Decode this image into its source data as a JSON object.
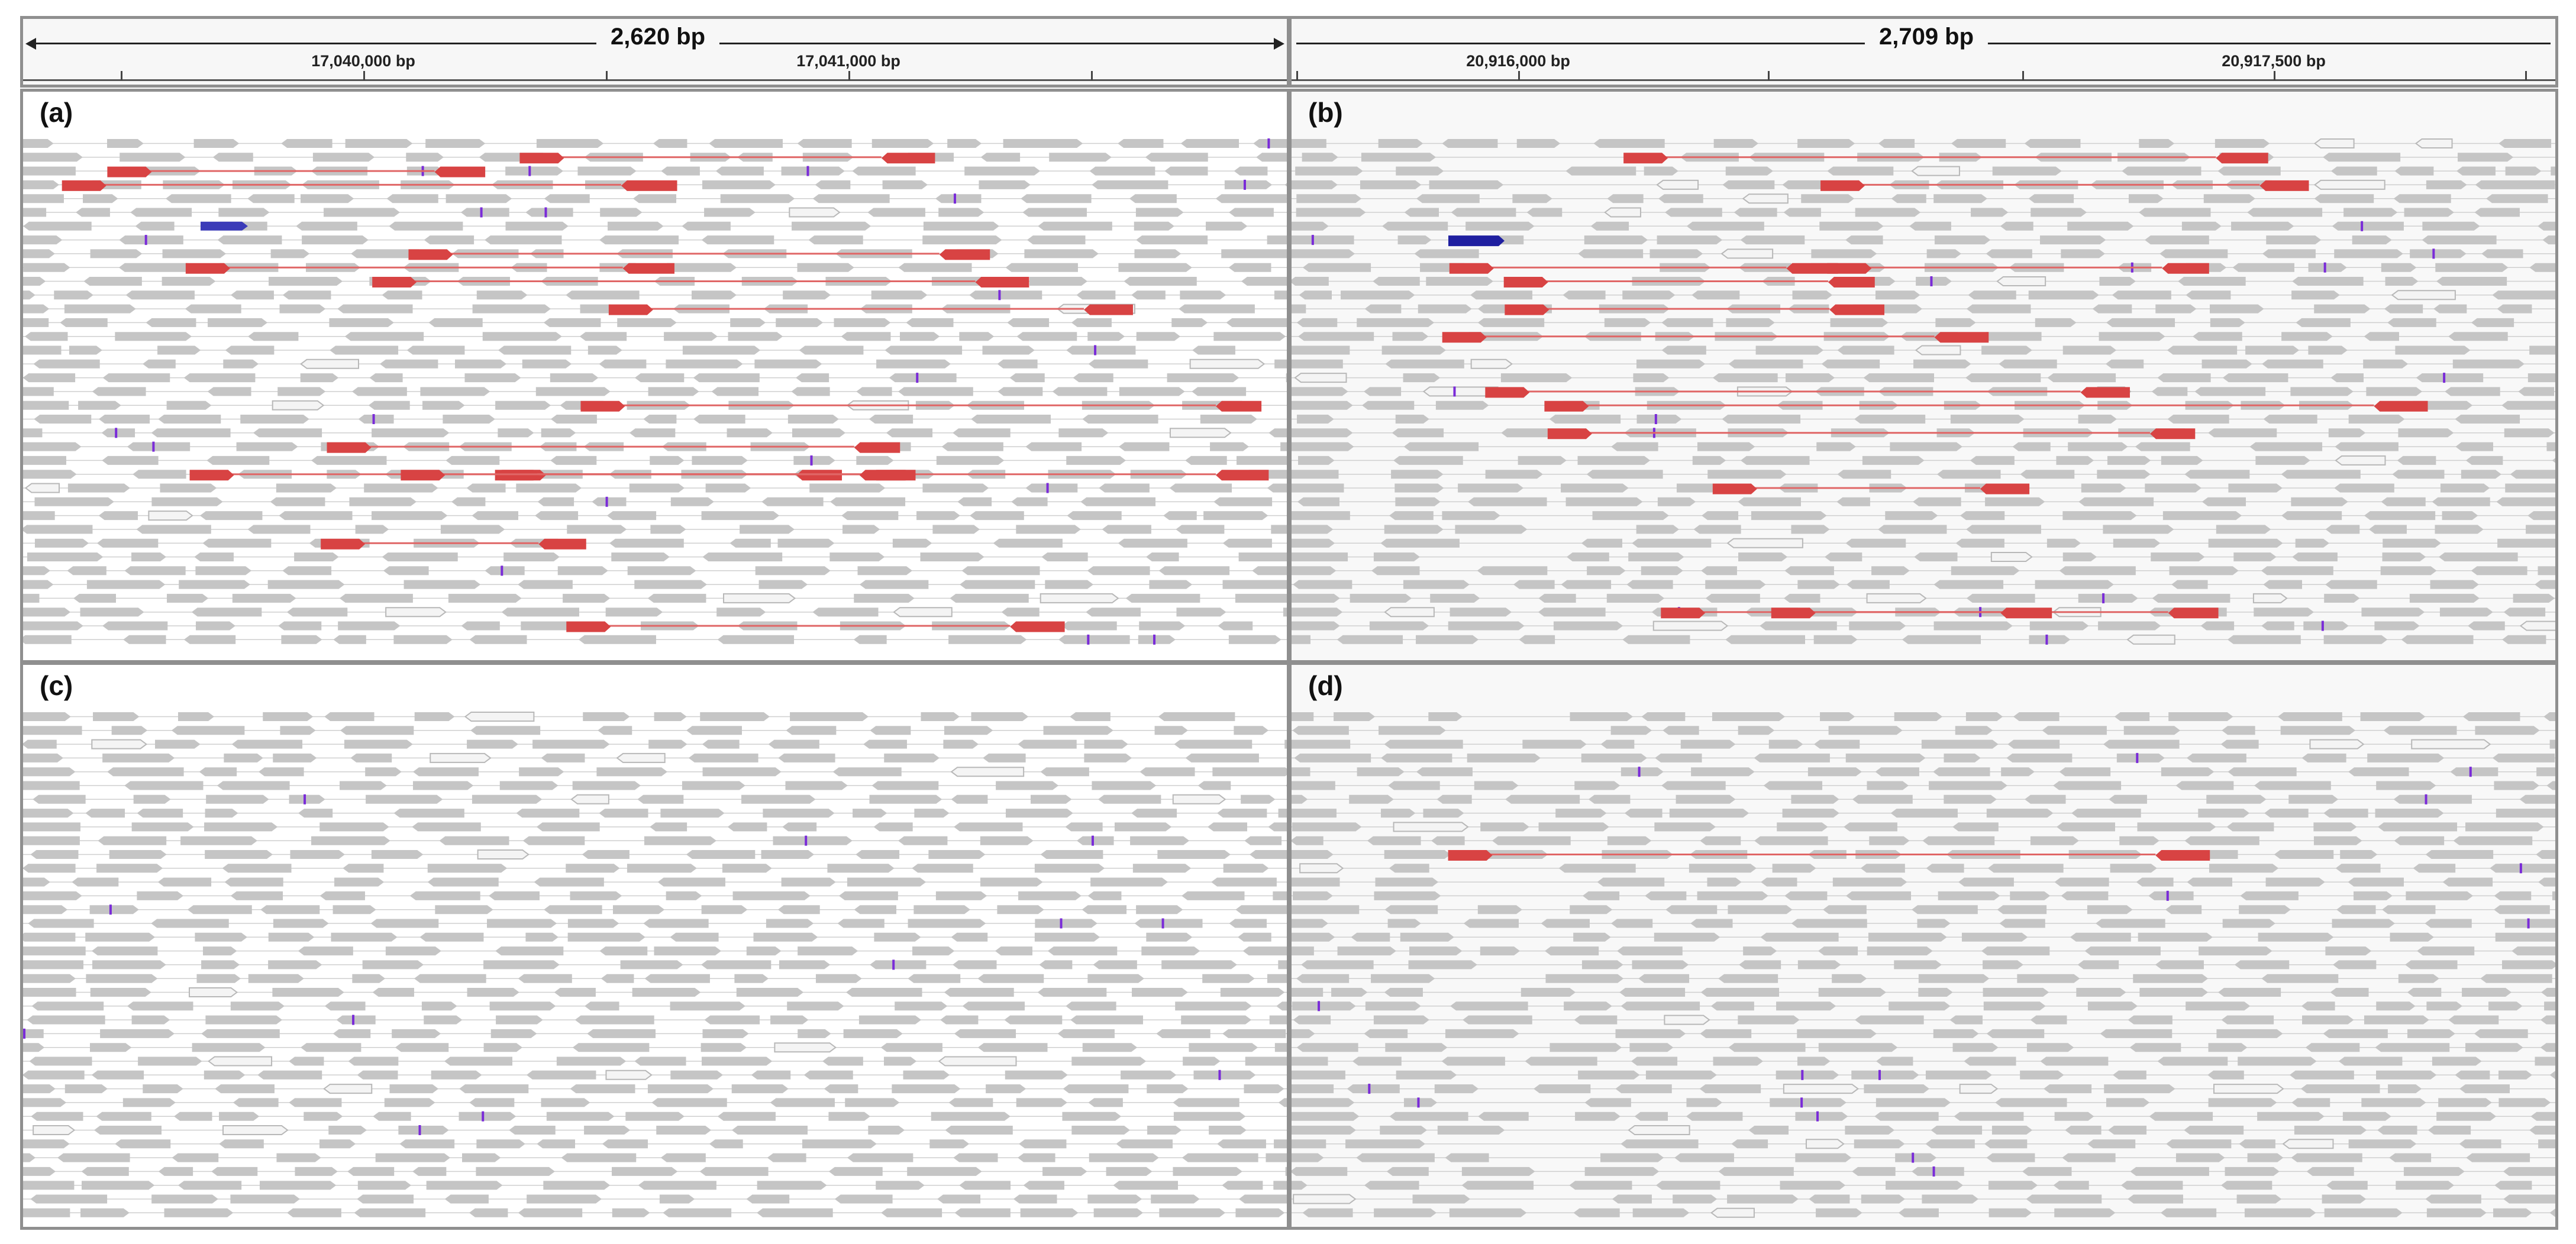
{
  "ruler_left": {
    "span_label": "2,620 bp",
    "tick_labels": [
      "17,040,000 bp",
      "17,041,000 bp"
    ]
  },
  "ruler_right": {
    "span_label": "2,709 bp",
    "tick_labels": [
      "20,916,000 bp",
      "20,917,500 bp"
    ]
  },
  "panels": [
    {
      "label": "(a)",
      "seed": 11,
      "split_reads": 15,
      "background": "white"
    },
    {
      "label": "(b)",
      "seed": 23,
      "split_reads": 13,
      "background": "gray"
    },
    {
      "label": "(c)",
      "seed": 37,
      "split_reads": 0,
      "background": "white"
    },
    {
      "label": "(d)",
      "seed": 53,
      "split_reads": 1,
      "background": "gray"
    }
  ],
  "colors": {
    "read": "#c5c5c5",
    "split_read": "#d84343",
    "split_line": "#e06666",
    "insertion": "#7a2bd8",
    "inversion_blue": "#3b3bb8",
    "outline_read": "#f4f4f4"
  }
}
